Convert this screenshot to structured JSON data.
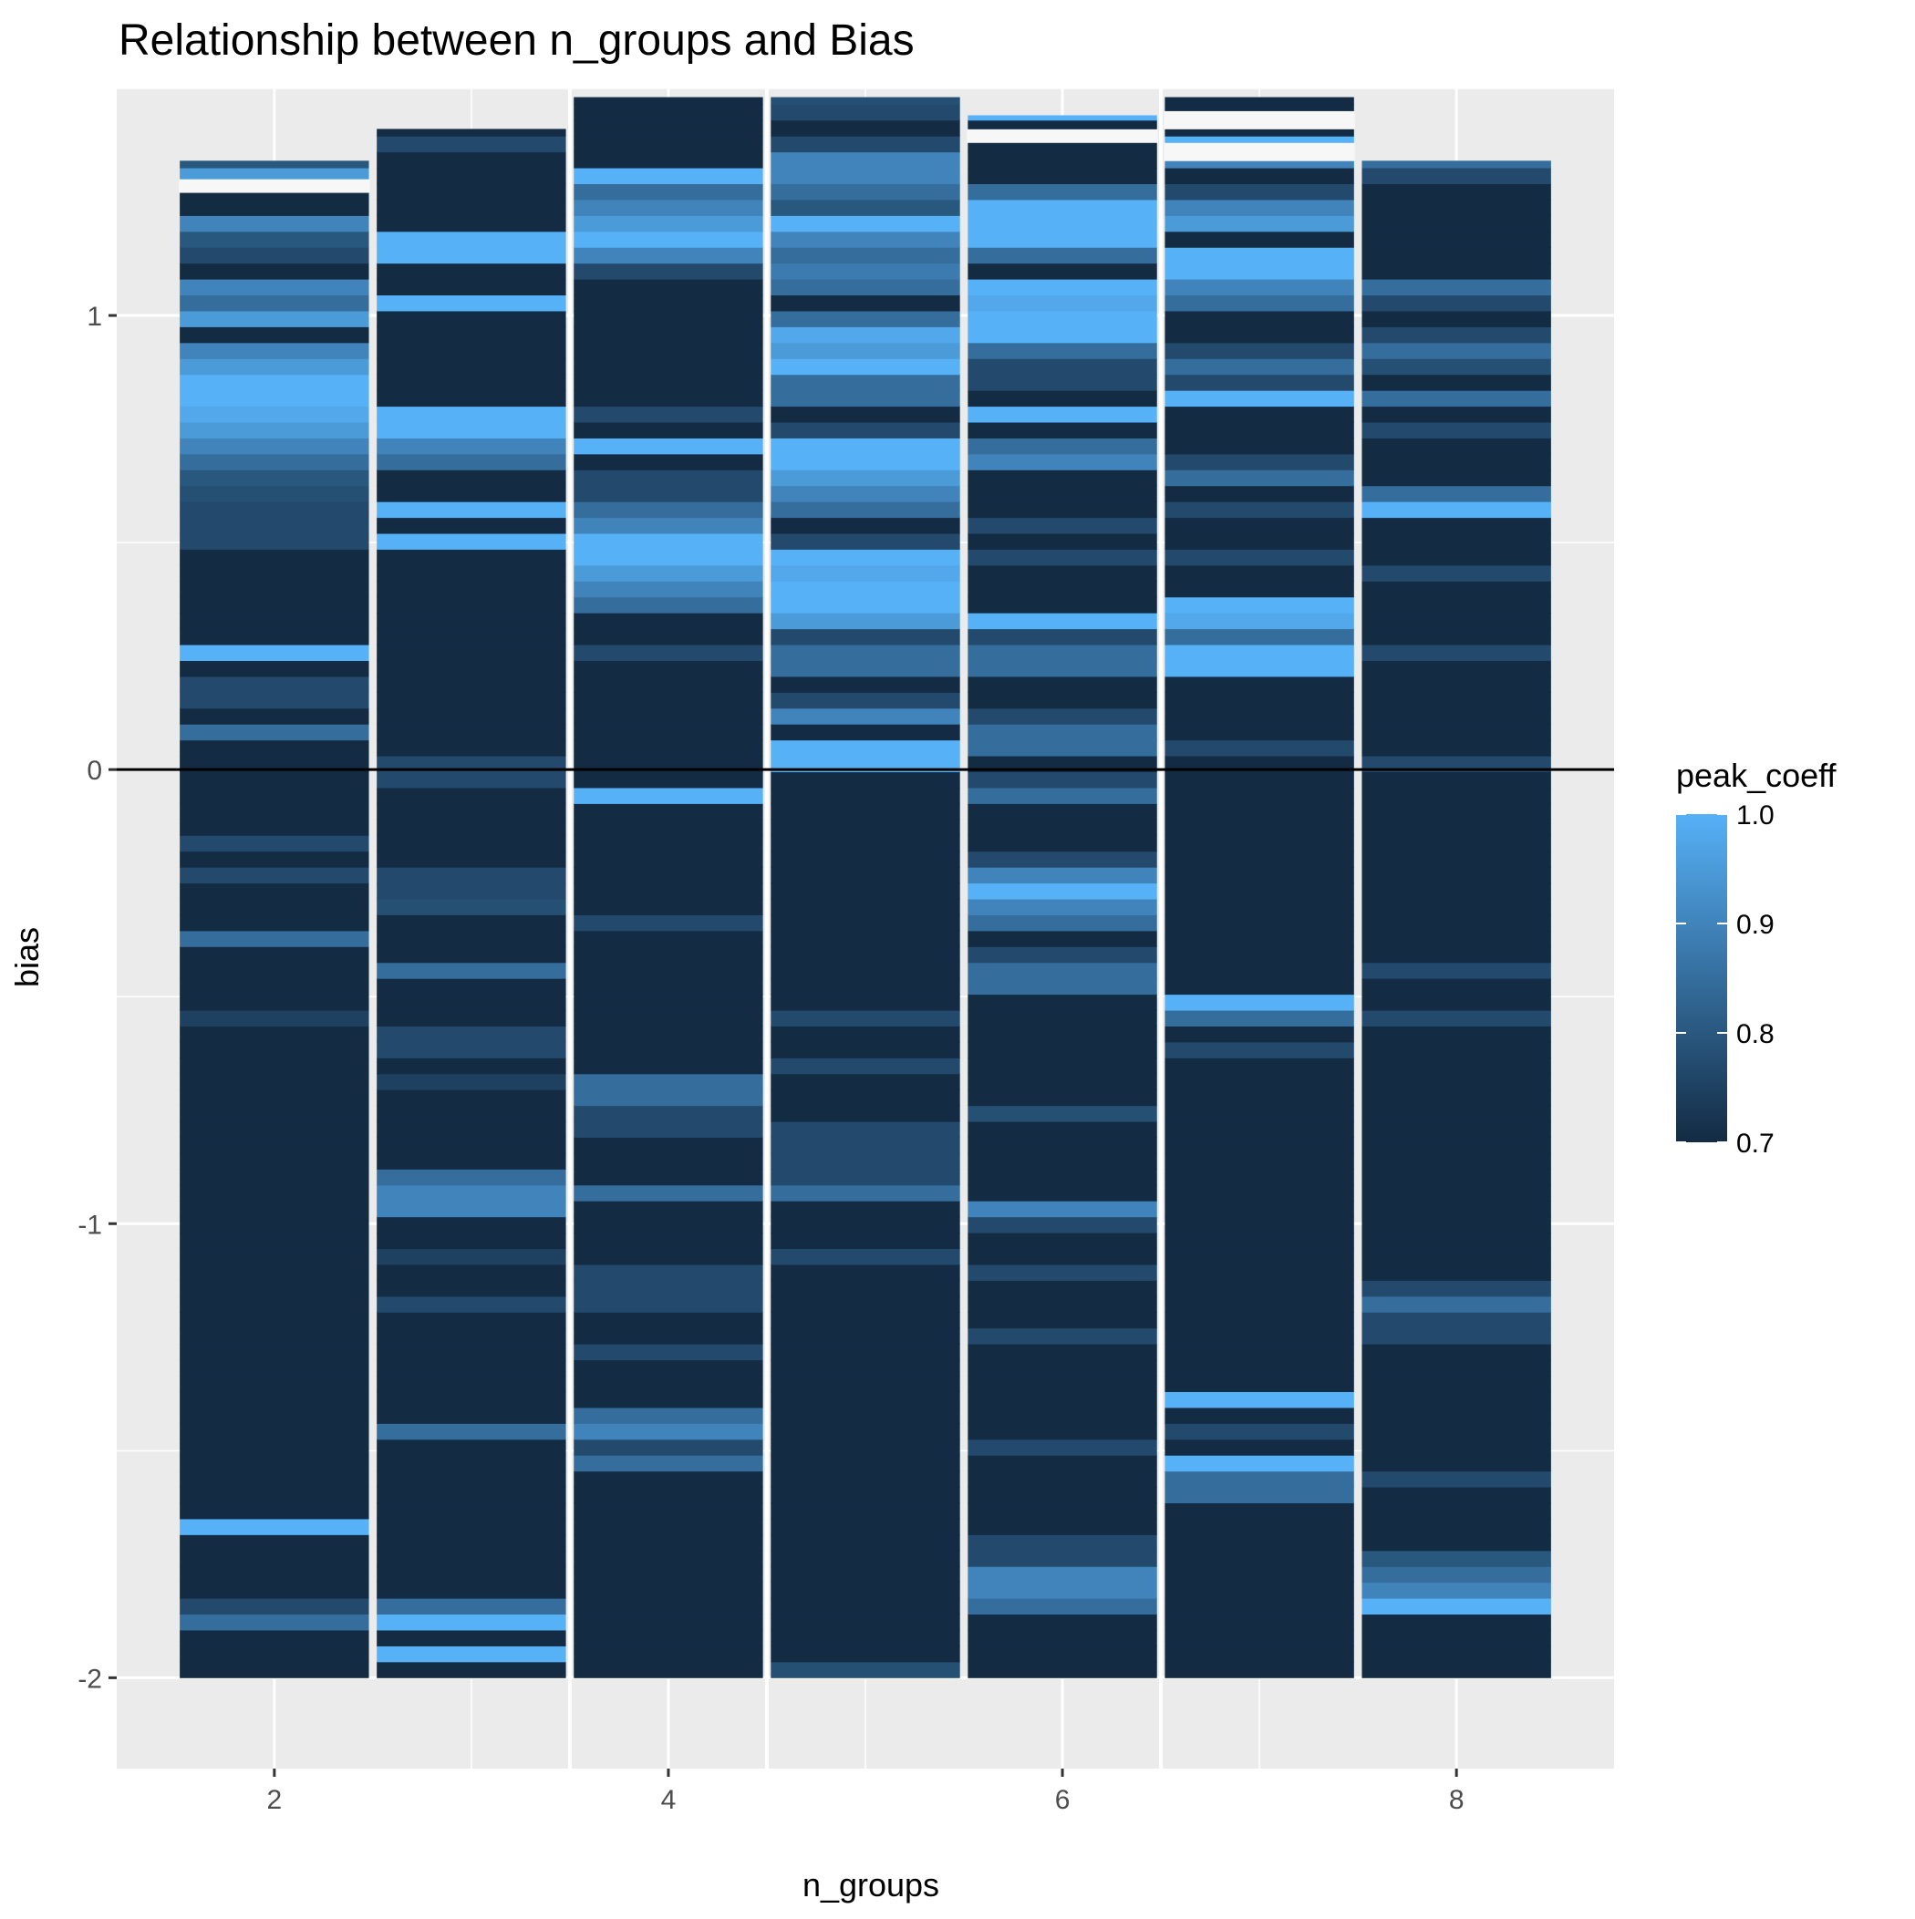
{
  "chart_data": {
    "type": "heatmap",
    "title": "Relationship between n_groups and Bias",
    "xlabel": "n_groups",
    "ylabel": "bias",
    "xlim": [
      1.2,
      8.8
    ],
    "ylim": [
      -2.2,
      1.5
    ],
    "x_ticks": [
      2,
      4,
      6,
      8
    ],
    "y_ticks": [
      -2,
      -1,
      0,
      1
    ],
    "x_tick_labels": [
      "2",
      "4",
      "6",
      "8"
    ],
    "y_tick_labels": [
      "-2",
      "-1",
      "0",
      "1"
    ],
    "hline_y": 0,
    "grid": true,
    "bin_width": 0.035,
    "fill": {
      "name": "peak_coeff",
      "min": 0.7,
      "max": 1.0,
      "low_color": "#132B43",
      "high_color": "#56B1F7"
    },
    "legend": {
      "title": "peak_coeff",
      "placement": "right",
      "ticks": [
        1.0,
        0.9,
        0.8,
        0.7
      ],
      "tick_labels": [
        "1.0",
        "0.9",
        "0.8",
        "0.7"
      ]
    },
    "series": [
      {
        "x": 2,
        "y_min": -2.0,
        "y_max": 1.34,
        "gaps": [
          [
            1.27,
            1.3
          ]
        ],
        "values": [
          0.7,
          0.7,
          0.7,
          0.85,
          0.77,
          0.7,
          0.7,
          0.7,
          0.7,
          1.0,
          0.7,
          0.7,
          0.7,
          0.7,
          0.7,
          0.7,
          0.7,
          0.7,
          0.7,
          0.7,
          0.7,
          0.7,
          0.7,
          0.7,
          0.7,
          0.7,
          0.7,
          0.7,
          0.7,
          0.7,
          0.7,
          0.7,
          0.7,
          0.7,
          0.7,
          0.7,
          0.7,
          0.7,
          0.7,
          0.7,
          0.7,
          0.75,
          0.7,
          0.7,
          0.7,
          0.7,
          0.85,
          0.7,
          0.7,
          0.7,
          0.77,
          0.7,
          0.77,
          0.7,
          0.7,
          0.7,
          0.7,
          0.7,
          0.7,
          0.85,
          0.7,
          0.77,
          0.77,
          0.7,
          1.0,
          0.7,
          0.7,
          0.7,
          0.7,
          0.7,
          0.7,
          0.77,
          0.77,
          0.77,
          0.78,
          0.8,
          0.85,
          0.9,
          0.95,
          0.98,
          1.0,
          1.0,
          0.95,
          0.9,
          0.7,
          0.95,
          0.85,
          0.9,
          0.7,
          0.77,
          0.8,
          0.9,
          0.7,
          0.7,
          0.95,
          0.8,
          0.7,
          0.78,
          0.85,
          0.77,
          0.7,
          0.7,
          0.78,
          0.78,
          0.7,
          0.7,
          0.7,
          0.7,
          0.75,
          0.7,
          1.0,
          0.7,
          0.85,
          0.7,
          1.0,
          1.0,
          0.7,
          0.77,
          0.7,
          0.7,
          0.98,
          0.7,
          1.0,
          1.0,
          1.0,
          0.7,
          0.85,
          0.95,
          1.0,
          0.7,
          0.9,
          0.77
        ]
      },
      {
        "x": 3,
        "y_min": -2.0,
        "y_max": 1.41,
        "gaps": [],
        "values": [
          0.7,
          1.0,
          0.7,
          1.0,
          0.85,
          0.7,
          0.7,
          0.7,
          0.7,
          0.7,
          0.7,
          0.7,
          0.7,
          0.7,
          0.7,
          0.85,
          0.7,
          0.7,
          0.7,
          0.7,
          0.7,
          0.7,
          0.7,
          0.77,
          0.7,
          0.7,
          0.75,
          0.7,
          0.7,
          0.9,
          0.9,
          0.85,
          0.7,
          0.7,
          0.7,
          0.7,
          0.7,
          0.75,
          0.7,
          0.77,
          0.77,
          0.7,
          0.7,
          0.7,
          0.85,
          0.7,
          0.7,
          0.7,
          0.78,
          0.77,
          0.77,
          0.7,
          0.7,
          0.7,
          0.7,
          0.7,
          0.77,
          0.77,
          0.7,
          0.7,
          0.7,
          0.7,
          0.7,
          0.7,
          0.7,
          0.7,
          0.7,
          0.7,
          0.7,
          0.7,
          0.7,
          1.0,
          0.7,
          1.0,
          0.7,
          0.7,
          0.85,
          0.9,
          1.0,
          1.0,
          0.7,
          0.7,
          0.7,
          0.7,
          0.7,
          0.7,
          1.0,
          0.7,
          0.7,
          1.0,
          1.0,
          0.7,
          0.7,
          0.7,
          0.7,
          0.7,
          0.77,
          0.7,
          0.7,
          0.7,
          0.7,
          0.77,
          0.7,
          0.7,
          0.77,
          0.7,
          0.85,
          0.85,
          0.9,
          0.9,
          0.77,
          0.7,
          0.7,
          0.7,
          0.7,
          0.7,
          0.7,
          0.7,
          0.7,
          0.7,
          0.7,
          0.7,
          0.77,
          0.7
        ]
      },
      {
        "x": 4,
        "y_min": -2.0,
        "y_max": 1.48,
        "gaps": [],
        "values": [
          0.7,
          0.7,
          0.7,
          0.7,
          0.7,
          0.7,
          0.7,
          0.7,
          0.7,
          0.7,
          0.7,
          0.7,
          0.7,
          0.85,
          0.77,
          0.9,
          0.85,
          0.7,
          0.7,
          0.7,
          0.77,
          0.7,
          0.7,
          0.77,
          0.77,
          0.77,
          0.7,
          0.7,
          0.7,
          0.7,
          0.85,
          0.7,
          0.7,
          0.7,
          0.77,
          0.77,
          0.85,
          0.85,
          0.7,
          0.7,
          0.7,
          0.7,
          0.7,
          0.7,
          0.7,
          0.7,
          0.7,
          0.77,
          0.7,
          0.7,
          0.7,
          0.7,
          0.7,
          0.7,
          0.7,
          1.0,
          0.7,
          0.7,
          0.7,
          0.7,
          0.7,
          0.7,
          0.7,
          0.7,
          0.77,
          0.7,
          0.7,
          0.85,
          0.9,
          0.95,
          1.0,
          1.0,
          0.9,
          0.85,
          0.77,
          0.77,
          0.7,
          1.0,
          0.7,
          0.77,
          0.7,
          0.7,
          0.7,
          0.7,
          0.7,
          0.7,
          0.7,
          0.7,
          0.77,
          0.9,
          1.0,
          0.95,
          0.9,
          0.85,
          1.0,
          0.7,
          0.7,
          0.7,
          0.7,
          0.7,
          0.77,
          0.85,
          0.9,
          0.7,
          0.7,
          0.7,
          0.77,
          0.7,
          0.7,
          0.7,
          0.7,
          0.7,
          0.7,
          0.7,
          0.7,
          0.9,
          0.85,
          0.9,
          0.7,
          0.7,
          1.0,
          0.7,
          0.7,
          0.7,
          0.7,
          0.7,
          0.7,
          0.7,
          0.7
        ]
      },
      {
        "x": 5,
        "y_min": -2.0,
        "y_max": 1.48,
        "gaps": [],
        "values": [
          0.78,
          0.7,
          0.7,
          0.7,
          0.7,
          0.7,
          0.7,
          0.7,
          0.7,
          0.7,
          0.7,
          0.7,
          0.7,
          0.7,
          0.7,
          0.7,
          0.7,
          0.7,
          0.7,
          0.7,
          0.7,
          0.7,
          0.7,
          0.7,
          0.7,
          0.7,
          0.77,
          0.7,
          0.7,
          0.7,
          0.85,
          0.77,
          0.77,
          0.77,
          0.77,
          0.7,
          0.7,
          0.7,
          0.77,
          0.7,
          0.7,
          0.77,
          0.7,
          0.7,
          0.7,
          0.7,
          0.7,
          0.7,
          0.7,
          0.7,
          0.7,
          0.7,
          0.7,
          0.7,
          0.7,
          0.7,
          0.7,
          1.0,
          1.0,
          0.7,
          0.9,
          0.77,
          0.7,
          0.85,
          0.85,
          0.77,
          0.95,
          1.0,
          1.0,
          0.98,
          1.0,
          0.77,
          0.7,
          0.85,
          0.9,
          0.95,
          1.0,
          1.0,
          0.77,
          0.7,
          0.85,
          0.85,
          1.0,
          0.95,
          0.98,
          0.85,
          0.7,
          0.85,
          0.88,
          0.85,
          0.9,
          1.0,
          0.8,
          0.85,
          0.9,
          0.9,
          0.77,
          0.7,
          0.77,
          0.78,
          0.7,
          0.7,
          0.85,
          0.7,
          0.7,
          0.7,
          0.7,
          1.0,
          0.7,
          0.7,
          0.7,
          0.85,
          0.9,
          0.98,
          0.95,
          0.77,
          0.85,
          0.85,
          0.7,
          1.0,
          0.7,
          0.7,
          0.7,
          0.7
        ]
      },
      {
        "x": 6,
        "y_min": -2.0,
        "y_max": 1.44,
        "gaps": [
          [
            1.38,
            1.41
          ]
        ],
        "values": [
          0.7,
          0.7,
          0.7,
          0.7,
          0.85,
          0.9,
          0.9,
          0.77,
          0.77,
          0.7,
          0.7,
          0.7,
          0.7,
          0.7,
          0.77,
          0.7,
          0.7,
          0.7,
          0.7,
          0.7,
          0.7,
          0.77,
          0.7,
          0.7,
          0.7,
          0.77,
          0.7,
          0.7,
          0.77,
          0.9,
          0.7,
          0.7,
          0.7,
          0.7,
          0.7,
          0.78,
          0.7,
          0.7,
          0.7,
          0.7,
          0.7,
          0.7,
          0.7,
          0.85,
          0.85,
          0.77,
          0.7,
          0.85,
          0.9,
          1.0,
          0.9,
          0.77,
          0.7,
          0.7,
          0.7,
          0.85,
          0.77,
          0.7,
          0.85,
          0.85,
          0.77,
          0.7,
          0.7,
          0.85,
          0.85,
          0.77,
          1.0,
          0.7,
          0.7,
          0.7,
          0.77,
          0.7,
          0.77,
          0.7,
          0.7,
          0.7,
          0.9,
          0.85,
          0.7,
          1.0,
          0.7,
          0.77,
          0.77,
          0.85,
          1.0,
          1.0,
          0.98,
          1.0,
          0.7,
          0.85,
          1.0,
          1.0,
          1.0,
          0.85,
          0.7,
          0.7,
          0.7,
          0.7,
          1.0,
          0.85,
          0.77,
          0.7,
          0.7,
          0.7,
          1.0,
          0.9,
          0.85,
          0.7,
          0.85,
          0.7,
          0.77,
          0.85,
          0.85,
          0.95,
          0.77,
          0.7,
          0.7,
          0.7,
          0.7,
          0.7,
          0.7,
          0.7,
          0.7,
          1.0,
          0.7
        ]
      },
      {
        "x": 7,
        "y_min": -2.0,
        "y_max": 1.48,
        "gaps": [
          [
            1.34,
            1.38
          ],
          [
            1.41,
            1.45
          ]
        ],
        "values": [
          0.7,
          0.7,
          0.7,
          0.7,
          0.7,
          0.7,
          0.7,
          0.7,
          0.7,
          0.7,
          0.7,
          0.85,
          0.85,
          1.0,
          0.7,
          0.77,
          0.7,
          1.0,
          0.7,
          0.7,
          0.7,
          0.7,
          0.7,
          0.7,
          0.7,
          0.7,
          0.7,
          0.7,
          0.7,
          0.7,
          0.7,
          0.7,
          0.7,
          0.7,
          0.7,
          0.7,
          0.7,
          0.7,
          0.7,
          0.77,
          0.7,
          0.85,
          1.0,
          0.7,
          0.7,
          0.7,
          0.7,
          0.7,
          0.7,
          0.7,
          0.7,
          0.7,
          0.7,
          0.7,
          0.7,
          0.7,
          0.7,
          0.7,
          0.77,
          0.7,
          0.7,
          0.7,
          0.7,
          1.0,
          1.0,
          0.85,
          0.98,
          1.0,
          0.7,
          0.7,
          0.77,
          0.7,
          0.7,
          0.77,
          0.7,
          0.85,
          0.77,
          0.7,
          0.7,
          0.7,
          1.0,
          0.77,
          0.85,
          0.77,
          0.7,
          0.7,
          0.85,
          0.9,
          1.0,
          1.0,
          0.7,
          0.95,
          0.9,
          0.77,
          0.7,
          0.9,
          1.0,
          0.7,
          0.7,
          0.7,
          0.7,
          0.7,
          0.77,
          0.77,
          0.7,
          0.85,
          1.0,
          0.9,
          0.85,
          1.0,
          0.7,
          0.77,
          0.77,
          0.7,
          0.7,
          0.7,
          0.77,
          0.77,
          0.7,
          0.7,
          1.0,
          0.7,
          0.7
        ]
      },
      {
        "x": 8,
        "y_min": -2.0,
        "y_max": 1.34,
        "gaps": [],
        "values": [
          0.7,
          0.7,
          0.7,
          0.7,
          1.0,
          0.9,
          0.85,
          0.8,
          0.7,
          0.7,
          0.7,
          0.7,
          0.77,
          0.7,
          0.7,
          0.7,
          0.7,
          0.7,
          0.7,
          0.7,
          0.7,
          0.77,
          0.77,
          0.85,
          0.77,
          0.7,
          0.7,
          0.7,
          0.7,
          0.7,
          0.7,
          0.7,
          0.7,
          0.7,
          0.7,
          0.7,
          0.7,
          0.7,
          0.7,
          0.7,
          0.7,
          0.77,
          0.7,
          0.7,
          0.77,
          0.7,
          0.7,
          0.7,
          0.7,
          0.7,
          0.7,
          0.7,
          0.7,
          0.7,
          0.7,
          0.7,
          0.7,
          0.77,
          0.7,
          0.7,
          0.7,
          0.7,
          0.7,
          0.7,
          0.77,
          0.7,
          0.7,
          0.7,
          0.7,
          0.77,
          0.7,
          0.7,
          0.7,
          1.0,
          0.85,
          0.7,
          0.7,
          0.7,
          0.77,
          0.7,
          0.85,
          0.7,
          0.78,
          0.85,
          0.77,
          0.7,
          0.77,
          0.85,
          0.7,
          0.7,
          0.7,
          0.7,
          0.7,
          0.7,
          0.77,
          0.85,
          1.0,
          0.7,
          0.85,
          0.95,
          1.0,
          0.85,
          0.8,
          0.77,
          0.85,
          0.7,
          1.0,
          0.78,
          0.85,
          1.0,
          0.7,
          0.85,
          0.95,
          0.9,
          0.85,
          1.0,
          0.78,
          0.77,
          0.7,
          0.7,
          1.0,
          0.77,
          0.7
        ]
      }
    ]
  }
}
